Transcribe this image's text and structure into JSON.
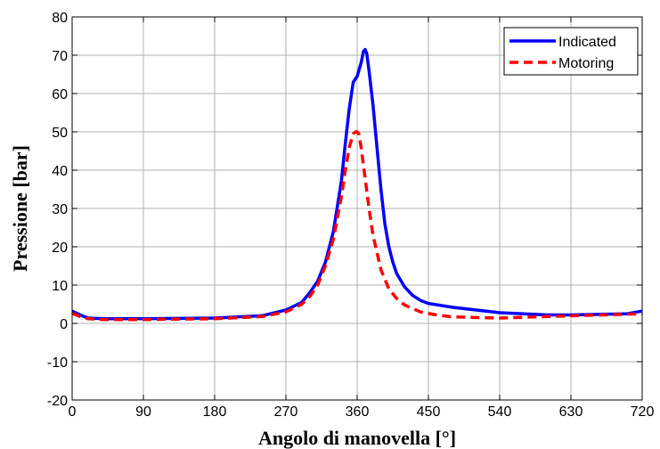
{
  "chart_data": {
    "type": "line",
    "xlabel": "Angolo di manovella [°]",
    "ylabel": "Pressione [bar]",
    "xlim": [
      0,
      720
    ],
    "ylim": [
      -20,
      80
    ],
    "xticks": [
      0,
      90,
      180,
      270,
      360,
      450,
      540,
      630,
      720
    ],
    "yticks": [
      -20,
      -10,
      0,
      10,
      20,
      30,
      40,
      50,
      60,
      70,
      80
    ],
    "grid": true,
    "legend_position": "top-right",
    "series": [
      {
        "name": "Indicated",
        "color": "#0000ff",
        "style": "solid",
        "x": [
          0,
          10,
          20,
          40,
          90,
          180,
          240,
          270,
          290,
          300,
          310,
          320,
          330,
          340,
          345,
          350,
          355,
          360,
          365,
          368,
          370,
          372,
          375,
          380,
          385,
          390,
          395,
          400,
          405,
          410,
          420,
          430,
          440,
          450,
          480,
          540,
          600,
          630,
          700,
          720
        ],
        "y": [
          3.2,
          2.2,
          1.4,
          1.2,
          1.2,
          1.4,
          2.0,
          3.5,
          5.5,
          8,
          11,
          16,
          24,
          37,
          47,
          56,
          63,
          64.5,
          68,
          71,
          71.5,
          70.5,
          66,
          57,
          46,
          35,
          26,
          20,
          16,
          13,
          9.5,
          7.3,
          6,
          5.2,
          4.2,
          2.8,
          2.2,
          2.2,
          2.5,
          3.2
        ]
      },
      {
        "name": "Motoring",
        "color": "#ff0000",
        "style": "dashed",
        "x": [
          0,
          10,
          20,
          40,
          90,
          180,
          240,
          270,
          290,
          300,
          310,
          320,
          330,
          340,
          345,
          350,
          355,
          358,
          360,
          362,
          365,
          370,
          375,
          380,
          390,
          400,
          410,
          420,
          440,
          460,
          480,
          540,
          600,
          650,
          700,
          720
        ],
        "y": [
          2.6,
          1.8,
          1.2,
          1.0,
          1.0,
          1.2,
          1.8,
          3.0,
          5,
          7,
          10,
          15,
          22,
          33,
          40,
          46,
          49.5,
          50,
          50,
          49.5,
          46,
          38,
          30,
          23,
          14,
          9,
          6.5,
          4.8,
          3,
          2.2,
          1.7,
          1.4,
          1.8,
          2.1,
          2.4,
          2.5
        ]
      }
    ]
  }
}
